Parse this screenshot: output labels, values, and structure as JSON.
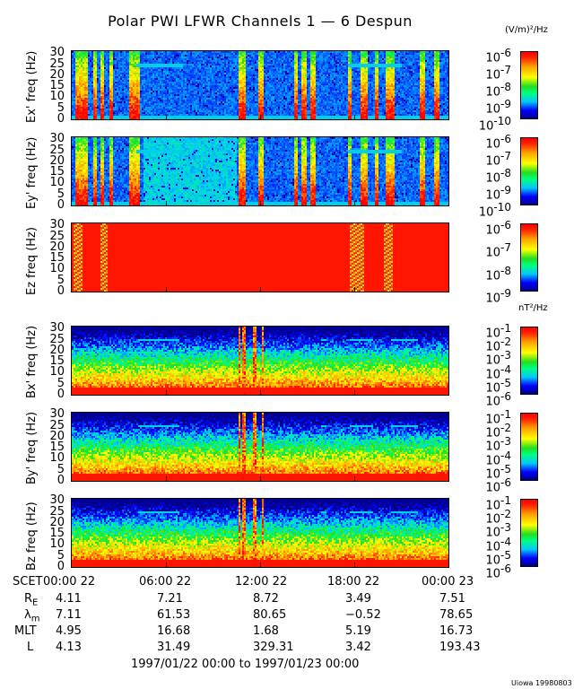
{
  "title": "Polar PWI LFWR Channels 1 — 6 Despun",
  "e_units": "(V/m)²/Hz",
  "b_units": "nT²/Hz",
  "chart_data": {
    "type": "heatmap",
    "title": "Polar PWI LFWR Channels 1 — 6 Despun",
    "xlim": [
      "1997/01/22 00:00",
      "1997/01/23 00:00"
    ],
    "x_ticks": [
      "06:00 22",
      "12:00 22",
      "18:00 22"
    ],
    "y_ticks": [
      "0",
      "5",
      "10",
      "15",
      "20",
      "25",
      "30"
    ],
    "ylim": [
      0,
      30
    ],
    "colorscale": "rainbow (blue-cyan-green-yellow-red)",
    "panels": [
      {
        "ylabel": "Ex' freq (Hz)",
        "units": "(V/m)²/Hz",
        "cbar_ticks": [
          "10",
          "10",
          "10",
          "10",
          "10"
        ],
        "cbar_exps": [
          "-6",
          "-7",
          "-8",
          "-9",
          "-10"
        ],
        "zlim": [
          "1e-10",
          "1e-6"
        ]
      },
      {
        "ylabel": "Ey' freq (Hz)",
        "units": "(V/m)²/Hz",
        "cbar_ticks": [
          "10",
          "10",
          "10",
          "10",
          "10"
        ],
        "cbar_exps": [
          "-6",
          "-7",
          "-8",
          "-9",
          "-10"
        ],
        "zlim": [
          "1e-10",
          "1e-6"
        ]
      },
      {
        "ylabel": "Ez freq (Hz)",
        "units": "(V/m)²/Hz",
        "cbar_ticks": [
          "10",
          "10",
          "10",
          "10"
        ],
        "cbar_exps": [
          "-6",
          "-7",
          "-8",
          "-9"
        ],
        "zlim": [
          "1e-9",
          "1e-6"
        ]
      },
      {
        "ylabel": "Bx' freq (Hz)",
        "units": "nT²/Hz",
        "cbar_ticks": [
          "10",
          "10",
          "10",
          "10",
          "10",
          "10"
        ],
        "cbar_exps": [
          "-1",
          "-2",
          "-3",
          "-4",
          "-5",
          "-6"
        ],
        "zlim": [
          "1e-6",
          "1e-1"
        ]
      },
      {
        "ylabel": "By' freq (Hz)",
        "units": "nT²/Hz",
        "cbar_ticks": [
          "10",
          "10",
          "10",
          "10",
          "10",
          "10"
        ],
        "cbar_exps": [
          "-1",
          "-2",
          "-3",
          "-4",
          "-5",
          "-6"
        ],
        "zlim": [
          "1e-6",
          "1e-1"
        ]
      },
      {
        "ylabel": "Bz freq (Hz)",
        "units": "nT²/Hz",
        "cbar_ticks": [
          "10",
          "10",
          "10",
          "10",
          "10",
          "10"
        ],
        "cbar_exps": [
          "-1",
          "-2",
          "-3",
          "-4",
          "-5",
          "-6"
        ],
        "zlim": [
          "1e-6",
          "1e-1"
        ]
      }
    ]
  },
  "ephemeris": {
    "scet_label": "SCET",
    "times": [
      "00:00 22",
      "06:00 22",
      "12:00 22",
      "18:00 22",
      "00:00 23"
    ],
    "rows": [
      {
        "label": "R",
        "sub": "E",
        "values": [
          "4.11",
          "7.21",
          "8.72",
          "3.49",
          "7.51"
        ]
      },
      {
        "label": "λ",
        "sub": "m",
        "values": [
          "7.11",
          "61.53",
          "80.65",
          "−0.52",
          "78.65"
        ]
      },
      {
        "label": "MLT",
        "sub": "",
        "values": [
          "4.95",
          "16.68",
          "1.68",
          "5.19",
          "16.73"
        ]
      },
      {
        "label": "L",
        "sub": "",
        "values": [
          "4.13",
          "31.49",
          "329.31",
          "3.42",
          "193.43"
        ]
      }
    ]
  },
  "range_label": "1997/01/22 00:00 to 1997/01/23 00:00",
  "credit": "Uiowa 19980803"
}
